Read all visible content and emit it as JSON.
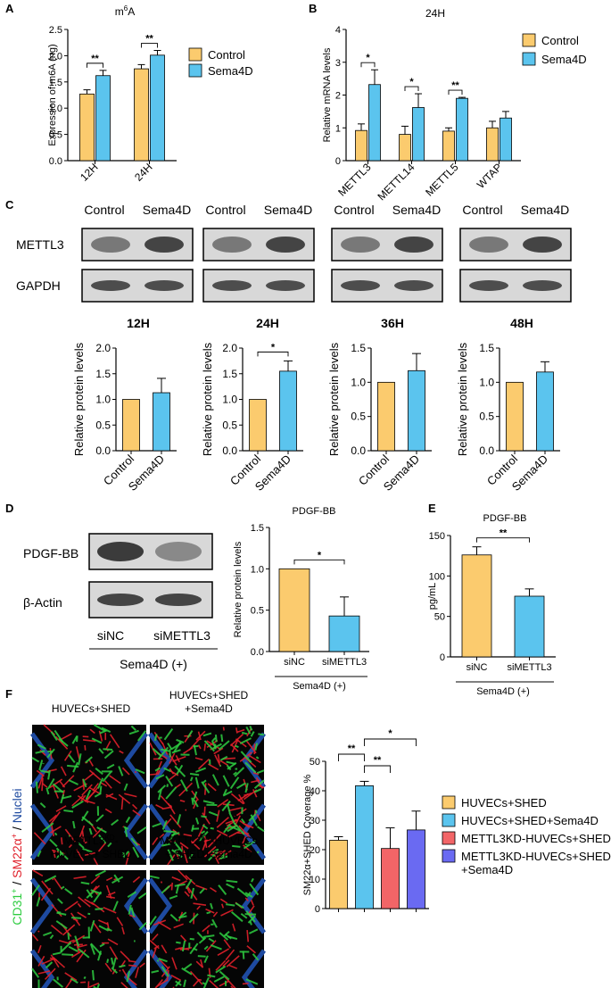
{
  "colors": {
    "control": "#FBCB6E",
    "sema4d": "#5BC4EE",
    "kd": "#F26567",
    "kd_sema4d": "#6A6AF2",
    "blot_bg": "#d8d8d8",
    "band": "#2a2a2a",
    "micro_bg": "#050505",
    "micro_green": "#2ecc40",
    "micro_red": "#e0202a",
    "micro_blue": "#1e4aa0"
  },
  "panels": {
    "A": "A",
    "B": "B",
    "C": "C",
    "D": "D",
    "E": "E",
    "F": "F"
  },
  "blots": {
    "C_headers": [
      "Control",
      "Sema4D"
    ],
    "C_rows": [
      "METTL3",
      "GAPDH"
    ],
    "D_rows": [
      "PDGF-BB",
      "β-Actin"
    ],
    "D_lanes": [
      "siNC",
      "siMETTL3"
    ],
    "D_group": "Sema4D (+)"
  },
  "micrographs": {
    "stain_parts": [
      "CD31",
      "+",
      " / ",
      "SM22α",
      "+",
      " / ",
      "Nuclei"
    ],
    "labels": [
      "HUVECs+SHED",
      "HUVECs+SHED\n+Sema4D",
      "METTL3KD-\nHUVECs+ SHED",
      "METTL3KD-HUVECs\n+ SHED+Sema4D"
    ],
    "kd_sup": "KD"
  },
  "chart_data": [
    {
      "id": "A",
      "type": "bar",
      "title": "m6A",
      "title_sup": "6",
      "categories": [
        "12H",
        "24H"
      ],
      "series": [
        {
          "name": "Control",
          "values": [
            1.27,
            1.75
          ],
          "errors": [
            0.08,
            0.08
          ]
        },
        {
          "name": "Sema4D",
          "values": [
            1.62,
            2.01
          ],
          "errors": [
            0.1,
            0.09
          ]
        }
      ],
      "ylabel": "Expression of m6A (ng)",
      "ylim": [
        0,
        2.5
      ],
      "yticks": [
        "0.0",
        "0.5",
        "1.0",
        "1.5",
        "2.0",
        "2.5"
      ],
      "significance": [
        "**",
        "**"
      ],
      "legend": "right"
    },
    {
      "id": "B",
      "type": "bar",
      "title": "24H",
      "categories": [
        "METTL3",
        "METTL14",
        "METTL5",
        "WTAP"
      ],
      "series": [
        {
          "name": "Control",
          "values": [
            0.92,
            0.8,
            0.9,
            1.0
          ],
          "errors": [
            0.2,
            0.25,
            0.1,
            0.2
          ]
        },
        {
          "name": "Sema4D",
          "values": [
            2.32,
            1.62,
            1.9,
            1.3
          ],
          "errors": [
            0.45,
            0.42,
            0.03,
            0.2
          ]
        }
      ],
      "ylabel": "Relative mRNA levels",
      "ylim": [
        0,
        4
      ],
      "yticks": [
        "0",
        "1",
        "2",
        "3",
        "4"
      ],
      "significance": [
        "*",
        "*",
        "**",
        ""
      ],
      "legend": "top-right"
    },
    {
      "id": "C12",
      "type": "bar",
      "title": "12H",
      "categories": [
        "Control",
        "Sema4D"
      ],
      "values": [
        1.0,
        1.13
      ],
      "errors": [
        0,
        0.28
      ],
      "ylabel": "Relative protein levels",
      "ylim": [
        0,
        2.0
      ],
      "yticks": [
        "0.0",
        "0.5",
        "1.0",
        "1.5",
        "2.0"
      ],
      "significance": ""
    },
    {
      "id": "C24",
      "type": "bar",
      "title": "24H",
      "categories": [
        "Control",
        "Sema4D"
      ],
      "values": [
        1.0,
        1.55
      ],
      "errors": [
        0,
        0.2
      ],
      "ylabel": "Relative protein levels",
      "ylim": [
        0,
        2.0
      ],
      "yticks": [
        "0.0",
        "0.5",
        "1.0",
        "1.5",
        "2.0"
      ],
      "significance": "*"
    },
    {
      "id": "C36",
      "type": "bar",
      "title": "36H",
      "categories": [
        "Control",
        "Sema4D"
      ],
      "values": [
        1.0,
        1.17
      ],
      "errors": [
        0,
        0.25
      ],
      "ylabel": "Relative protein levels",
      "ylim": [
        0,
        1.5
      ],
      "yticks": [
        "0.0",
        "0.5",
        "1.0",
        "1.5"
      ],
      "significance": ""
    },
    {
      "id": "C48",
      "type": "bar",
      "title": "48H",
      "categories": [
        "Control",
        "Sema4D"
      ],
      "values": [
        1.0,
        1.15
      ],
      "errors": [
        0,
        0.15
      ],
      "ylabel": "Relative protein levels",
      "ylim": [
        0,
        1.5
      ],
      "yticks": [
        "0.0",
        "0.5",
        "1.0",
        "1.5"
      ],
      "significance": ""
    },
    {
      "id": "D",
      "type": "bar",
      "title": "PDGF-BB",
      "categories": [
        "siNC",
        "siMETTL3"
      ],
      "values": [
        1.0,
        0.43
      ],
      "errors": [
        0,
        0.23
      ],
      "ylabel": "Relative protein levels",
      "ylim": [
        0,
        1.5
      ],
      "yticks": [
        "0.0",
        "0.5",
        "1.0",
        "1.5"
      ],
      "significance": "*",
      "group_label": "Sema4D (+)"
    },
    {
      "id": "E",
      "type": "bar",
      "title": "PDGF-BB",
      "categories": [
        "siNC",
        "siMETTL3"
      ],
      "values": [
        126,
        75
      ],
      "errors": [
        10,
        9
      ],
      "ylabel": "pg/mL",
      "ylim": [
        0,
        150
      ],
      "yticks": [
        "0",
        "50",
        "100",
        "150"
      ],
      "significance": "**",
      "group_label": "Sema4D (+)"
    },
    {
      "id": "F",
      "type": "bar",
      "categories": [
        "HUVECs+SHED",
        "HUVECs+SHED+Sema4D",
        "METTL3KD-HUVECs+SHED",
        "METTL3KD-HUVECs+SHED+Sema4D"
      ],
      "values": [
        23.2,
        41.7,
        20.4,
        26.7
      ],
      "errors": [
        1.2,
        1.5,
        7.0,
        6.4
      ],
      "ylabel": "SM22α+SHED Coverage %",
      "ylim": [
        0,
        50
      ],
      "yticks": [
        "0",
        "10",
        "20",
        "30",
        "40",
        "50"
      ],
      "significance": [
        {
          "from": 0,
          "to": 1,
          "label": "**"
        },
        {
          "from": 1,
          "to": 2,
          "label": "**"
        },
        {
          "from": 1,
          "to": 3,
          "label": "*"
        }
      ],
      "legend": [
        "HUVECs+SHED",
        "HUVECs+SHED+Sema4D",
        "METTL3KD-HUVECs+SHED",
        "METTL3KD-HUVECs+SHED\n+Sema4D"
      ]
    }
  ]
}
